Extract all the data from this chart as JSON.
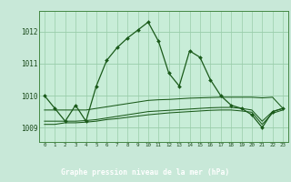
{
  "title": "Graphe pression niveau de la mer (hPa)",
  "bg_color": "#c8e8d8",
  "plot_bg_color": "#c8edd8",
  "label_bar_color": "#2a6a2a",
  "grid_color": "#99ccaa",
  "line_color": "#1a5a1a",
  "text_color": "#1a4a1a",
  "x_labels": [
    "0",
    "1",
    "2",
    "3",
    "4",
    "5",
    "6",
    "7",
    "8",
    "9",
    "10",
    "11",
    "12",
    "13",
    "14",
    "15",
    "16",
    "17",
    "18",
    "19",
    "20",
    "21",
    "22",
    "23"
  ],
  "main_line": [
    1010.0,
    1009.6,
    1009.2,
    1009.7,
    1009.2,
    1010.3,
    1011.1,
    1011.5,
    1011.8,
    1012.05,
    1012.3,
    1011.7,
    1010.7,
    1010.3,
    1011.4,
    1011.2,
    1010.5,
    1010.0,
    1009.7,
    1009.6,
    1009.4,
    1009.0,
    1009.5,
    1009.6
  ],
  "flat_line1": [
    1009.55,
    1009.55,
    1009.55,
    1009.55,
    1009.55,
    1009.6,
    1009.65,
    1009.7,
    1009.75,
    1009.8,
    1009.85,
    1009.87,
    1009.88,
    1009.9,
    1009.92,
    1009.93,
    1009.94,
    1009.95,
    1009.95,
    1009.95,
    1009.95,
    1009.93,
    1009.95,
    1009.6
  ],
  "flat_line2": [
    1009.2,
    1009.2,
    1009.2,
    1009.2,
    1009.22,
    1009.25,
    1009.3,
    1009.35,
    1009.4,
    1009.45,
    1009.5,
    1009.52,
    1009.54,
    1009.56,
    1009.58,
    1009.6,
    1009.62,
    1009.63,
    1009.63,
    1009.6,
    1009.55,
    1009.2,
    1009.5,
    1009.6
  ],
  "flat_line3": [
    1009.1,
    1009.1,
    1009.15,
    1009.15,
    1009.17,
    1009.2,
    1009.25,
    1009.28,
    1009.32,
    1009.36,
    1009.4,
    1009.43,
    1009.46,
    1009.48,
    1009.5,
    1009.52,
    1009.54,
    1009.55,
    1009.55,
    1009.52,
    1009.48,
    1009.1,
    1009.45,
    1009.55
  ],
  "ylim": [
    1008.55,
    1012.65
  ],
  "yticks": [
    1009,
    1010,
    1011,
    1012
  ],
  "xlim": [
    -0.5,
    23.5
  ]
}
